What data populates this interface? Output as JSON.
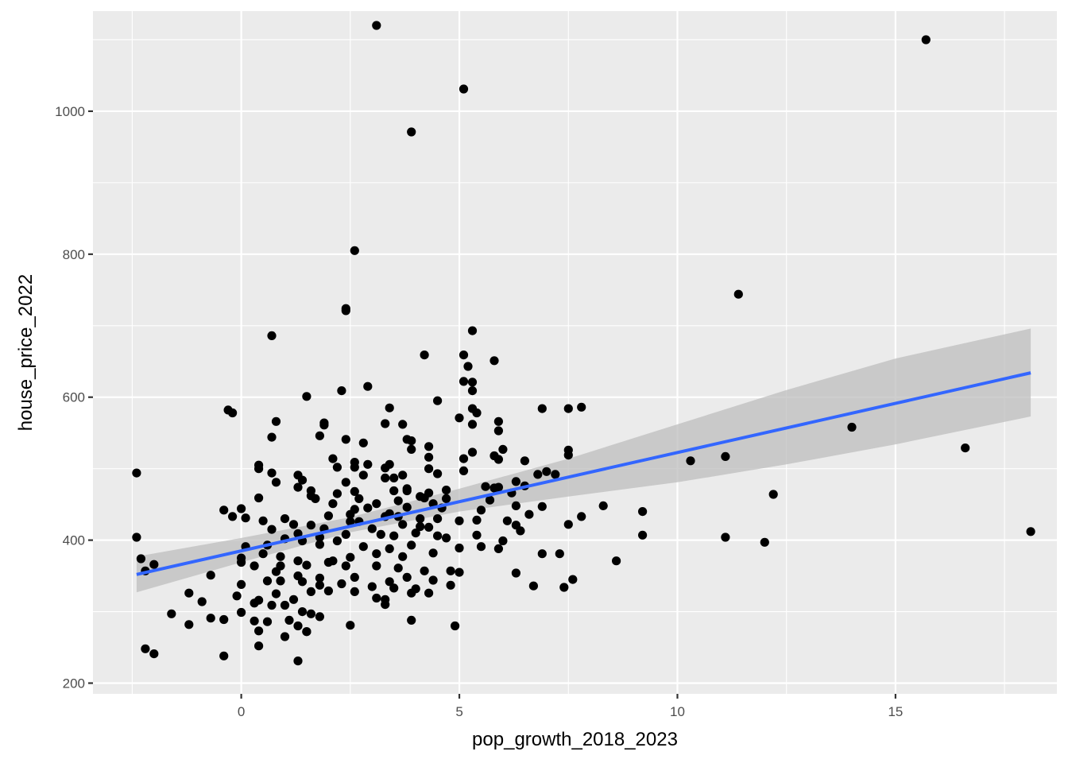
{
  "chart_data": {
    "type": "scatter",
    "xlabel": "pop_growth_2018_2023",
    "ylabel": "house_price_2022",
    "xlim": [
      -3.4,
      18.7
    ],
    "ylim": [
      185,
      1140
    ],
    "x_ticks": [
      0,
      5,
      10,
      15
    ],
    "x_tick_labels": [
      "0",
      "5",
      "10",
      "15"
    ],
    "y_ticks": [
      200,
      400,
      600,
      800,
      1000
    ],
    "y_tick_labels": [
      "200",
      "400",
      "600",
      "800",
      "1000"
    ],
    "x_minor": [
      -2.5,
      2.5,
      7.5,
      12.5,
      17.5
    ],
    "y_minor": [
      300,
      500,
      700,
      900,
      1100
    ],
    "grid": true,
    "colors": {
      "panel": "#ebebeb",
      "grid": "#ffffff",
      "point": "#000000",
      "fit": "#3366ff",
      "ribbon": "#c0c0c0"
    },
    "points": [
      [
        3.1,
        1120
      ],
      [
        15.7,
        1100
      ],
      [
        5.1,
        1031
      ],
      [
        3.9,
        971
      ],
      [
        2.6,
        805
      ],
      [
        11.4,
        744
      ],
      [
        2.4,
        724
      ],
      [
        2.4,
        721
      ],
      [
        0.7,
        686
      ],
      [
        5.3,
        693
      ],
      [
        4.2,
        659
      ],
      [
        5.1,
        659
      ],
      [
        5.8,
        651
      ],
      [
        5.2,
        643
      ],
      [
        2.9,
        615
      ],
      [
        5.1,
        622
      ],
      [
        5.3,
        621
      ],
      [
        2.3,
        609
      ],
      [
        5.3,
        609
      ],
      [
        1.5,
        601
      ],
      [
        4.5,
        595
      ],
      [
        -0.3,
        582
      ],
      [
        -0.2,
        578
      ],
      [
        3.4,
        585
      ],
      [
        5.3,
        584
      ],
      [
        5.4,
        578
      ],
      [
        6.9,
        584
      ],
      [
        7.5,
        584
      ],
      [
        7.8,
        586
      ],
      [
        0.8,
        566
      ],
      [
        3.3,
        563
      ],
      [
        3.7,
        562
      ],
      [
        5.9,
        566
      ],
      [
        1.9,
        564
      ],
      [
        1.9,
        561
      ],
      [
        5.0,
        571
      ],
      [
        5.3,
        562
      ],
      [
        5.9,
        553
      ],
      [
        0.7,
        544
      ],
      [
        1.8,
        546
      ],
      [
        2.4,
        541
      ],
      [
        3.8,
        541
      ],
      [
        3.9,
        539
      ],
      [
        6.0,
        527
      ],
      [
        2.8,
        536
      ],
      [
        4.3,
        531
      ],
      [
        5.3,
        523
      ],
      [
        3.9,
        527
      ],
      [
        7.5,
        526
      ],
      [
        7.5,
        519
      ],
      [
        5.8,
        518
      ],
      [
        2.1,
        514
      ],
      [
        5.9,
        513
      ],
      [
        6.5,
        511
      ],
      [
        2.6,
        509
      ],
      [
        3.4,
        506
      ],
      [
        5.1,
        514
      ],
      [
        0.4,
        505
      ],
      [
        0.4,
        500
      ],
      [
        2.2,
        502
      ],
      [
        2.6,
        502
      ],
      [
        2.9,
        506
      ],
      [
        3.3,
        501
      ],
      [
        4.3,
        516
      ],
      [
        4.3,
        500
      ],
      [
        5.1,
        497
      ],
      [
        7.2,
        492
      ],
      [
        0.7,
        494
      ],
      [
        1.3,
        491
      ],
      [
        2.8,
        491
      ],
      [
        3.5,
        487
      ],
      [
        3.7,
        491
      ],
      [
        4.5,
        493
      ],
      [
        6.8,
        492
      ],
      [
        7.0,
        496
      ],
      [
        0.8,
        481
      ],
      [
        1.4,
        484
      ],
      [
        2.4,
        481
      ],
      [
        3.3,
        487
      ],
      [
        3.8,
        472
      ],
      [
        4.1,
        461
      ],
      [
        5.6,
        475
      ],
      [
        6.3,
        482
      ],
      [
        1.3,
        474
      ],
      [
        1.6,
        469
      ],
      [
        2.6,
        468
      ],
      [
        3.5,
        469
      ],
      [
        3.8,
        469
      ],
      [
        4.3,
        466
      ],
      [
        4.7,
        470
      ],
      [
        5.9,
        474
      ],
      [
        6.2,
        466
      ],
      [
        12.2,
        464
      ],
      [
        0.4,
        459
      ],
      [
        1.6,
        462
      ],
      [
        1.7,
        458
      ],
      [
        2.2,
        465
      ],
      [
        2.7,
        458
      ],
      [
        3.6,
        455
      ],
      [
        4.2,
        459
      ],
      [
        4.7,
        458
      ],
      [
        5.7,
        456
      ],
      [
        5.8,
        473
      ],
      [
        6.5,
        476
      ],
      [
        0.0,
        444
      ],
      [
        -0.4,
        442
      ],
      [
        -0.2,
        433
      ],
      [
        2.1,
        451
      ],
      [
        2.6,
        443
      ],
      [
        2.9,
        445
      ],
      [
        3.1,
        451
      ],
      [
        3.3,
        433
      ],
      [
        3.8,
        446
      ],
      [
        4.6,
        445
      ],
      [
        4.4,
        451
      ],
      [
        5.5,
        442
      ],
      [
        6.3,
        448
      ],
      [
        6.9,
        447
      ],
      [
        8.3,
        448
      ],
      [
        9.2,
        440
      ],
      [
        0.1,
        431
      ],
      [
        0.5,
        427
      ],
      [
        1.0,
        430
      ],
      [
        2.0,
        434
      ],
      [
        2.5,
        436
      ],
      [
        2.7,
        426
      ],
      [
        3.4,
        437
      ],
      [
        3.6,
        433
      ],
      [
        4.1,
        430
      ],
      [
        4.5,
        430
      ],
      [
        5.4,
        428
      ],
      [
        6.1,
        427
      ],
      [
        6.6,
        436
      ],
      [
        7.8,
        433
      ],
      [
        1.2,
        422
      ],
      [
        1.6,
        421
      ],
      [
        1.9,
        416
      ],
      [
        2.5,
        426
      ],
      [
        3.0,
        416
      ],
      [
        3.7,
        422
      ],
      [
        4.1,
        419
      ],
      [
        4.3,
        418
      ],
      [
        5.0,
        427
      ],
      [
        6.3,
        421
      ],
      [
        6.4,
        413
      ],
      [
        7.5,
        422
      ],
      [
        0.7,
        415
      ],
      [
        1.3,
        409
      ],
      [
        1.8,
        404
      ],
      [
        2.4,
        408
      ],
      [
        3.2,
        408
      ],
      [
        3.5,
        406
      ],
      [
        4.0,
        410
      ],
      [
        4.5,
        406
      ],
      [
        5.4,
        407
      ],
      [
        6.0,
        399
      ],
      [
        11.1,
        404
      ],
      [
        0.1,
        391
      ],
      [
        0.6,
        393
      ],
      [
        1.0,
        402
      ],
      [
        1.4,
        399
      ],
      [
        1.8,
        394
      ],
      [
        2.2,
        399
      ],
      [
        2.8,
        391
      ],
      [
        3.4,
        388
      ],
      [
        3.9,
        393
      ],
      [
        4.7,
        403
      ],
      [
        5.5,
        391
      ],
      [
        5.9,
        388
      ],
      [
        0.0,
        375
      ],
      [
        0.0,
        369
      ],
      [
        0.5,
        381
      ],
      [
        0.9,
        377
      ],
      [
        1.3,
        371
      ],
      [
        2.1,
        371
      ],
      [
        2.5,
        376
      ],
      [
        3.1,
        381
      ],
      [
        3.7,
        377
      ],
      [
        4.4,
        382
      ],
      [
        5.0,
        389
      ],
      [
        6.9,
        381
      ],
      [
        7.3,
        381
      ],
      [
        9.2,
        407
      ],
      [
        12.0,
        397
      ],
      [
        18.1,
        412
      ],
      [
        0.3,
        364
      ],
      [
        0.9,
        364
      ],
      [
        1.5,
        365
      ],
      [
        2.0,
        369
      ],
      [
        2.4,
        364
      ],
      [
        3.1,
        364
      ],
      [
        3.6,
        361
      ],
      [
        4.2,
        357
      ],
      [
        4.8,
        357
      ],
      [
        6.3,
        354
      ],
      [
        0.8,
        356
      ],
      [
        1.3,
        350
      ],
      [
        1.8,
        347
      ],
      [
        2.6,
        348
      ],
      [
        3.4,
        342
      ],
      [
        3.8,
        348
      ],
      [
        4.4,
        344
      ],
      [
        5.0,
        355
      ],
      [
        8.6,
        371
      ],
      [
        -0.7,
        351
      ],
      [
        0.0,
        338
      ],
      [
        0.6,
        343
      ],
      [
        0.9,
        343
      ],
      [
        1.4,
        342
      ],
      [
        1.8,
        337
      ],
      [
        2.3,
        339
      ],
      [
        3.0,
        335
      ],
      [
        3.5,
        333
      ],
      [
        4.0,
        332
      ],
      [
        4.8,
        337
      ],
      [
        6.7,
        336
      ],
      [
        7.4,
        334
      ],
      [
        7.6,
        345
      ],
      [
        -1.2,
        326
      ],
      [
        -0.1,
        322
      ],
      [
        0.4,
        316
      ],
      [
        0.8,
        325
      ],
      [
        1.2,
        317
      ],
      [
        1.6,
        328
      ],
      [
        2.0,
        329
      ],
      [
        2.6,
        328
      ],
      [
        3.3,
        317
      ],
      [
        3.9,
        326
      ],
      [
        4.3,
        326
      ],
      [
        -0.9,
        314
      ],
      [
        0.0,
        299
      ],
      [
        0.3,
        312
      ],
      [
        0.7,
        309
      ],
      [
        1.0,
        309
      ],
      [
        1.4,
        300
      ],
      [
        1.6,
        297
      ],
      [
        1.8,
        293
      ],
      [
        3.1,
        319
      ],
      [
        3.3,
        310
      ],
      [
        -1.6,
        297
      ],
      [
        -0.7,
        291
      ],
      [
        -0.4,
        289
      ],
      [
        0.3,
        287
      ],
      [
        0.6,
        286
      ],
      [
        1.1,
        288
      ],
      [
        1.3,
        280
      ],
      [
        1.5,
        272
      ],
      [
        2.5,
        281
      ],
      [
        3.9,
        288
      ],
      [
        4.9,
        280
      ],
      [
        -1.2,
        282
      ],
      [
        0.4,
        273
      ],
      [
        1.0,
        265
      ],
      [
        1.5,
        272
      ],
      [
        -2.2,
        248
      ],
      [
        -2.0,
        241
      ],
      [
        -0.4,
        238
      ],
      [
        0.4,
        252
      ],
      [
        1.3,
        231
      ],
      [
        -2.4,
        494
      ],
      [
        -2.4,
        404
      ],
      [
        -2.3,
        374
      ],
      [
        -2.2,
        357
      ],
      [
        -2.0,
        366
      ],
      [
        10.3,
        511
      ],
      [
        11.1,
        517
      ],
      [
        14.0,
        558
      ],
      [
        16.6,
        529
      ]
    ],
    "fit_line": {
      "x": [
        -2.4,
        18.1
      ],
      "y": [
        352,
        634
      ]
    },
    "ribbon": {
      "x": [
        -2.4,
        0.0,
        2.5,
        5.0,
        7.5,
        10.0,
        12.5,
        15.0,
        18.1
      ],
      "lower": [
        327,
        369,
        411,
        440,
        461,
        481,
        506,
        534,
        573
      ],
      "upper": [
        377,
        403,
        432,
        472,
        514,
        562,
        610,
        654,
        696
      ]
    }
  }
}
